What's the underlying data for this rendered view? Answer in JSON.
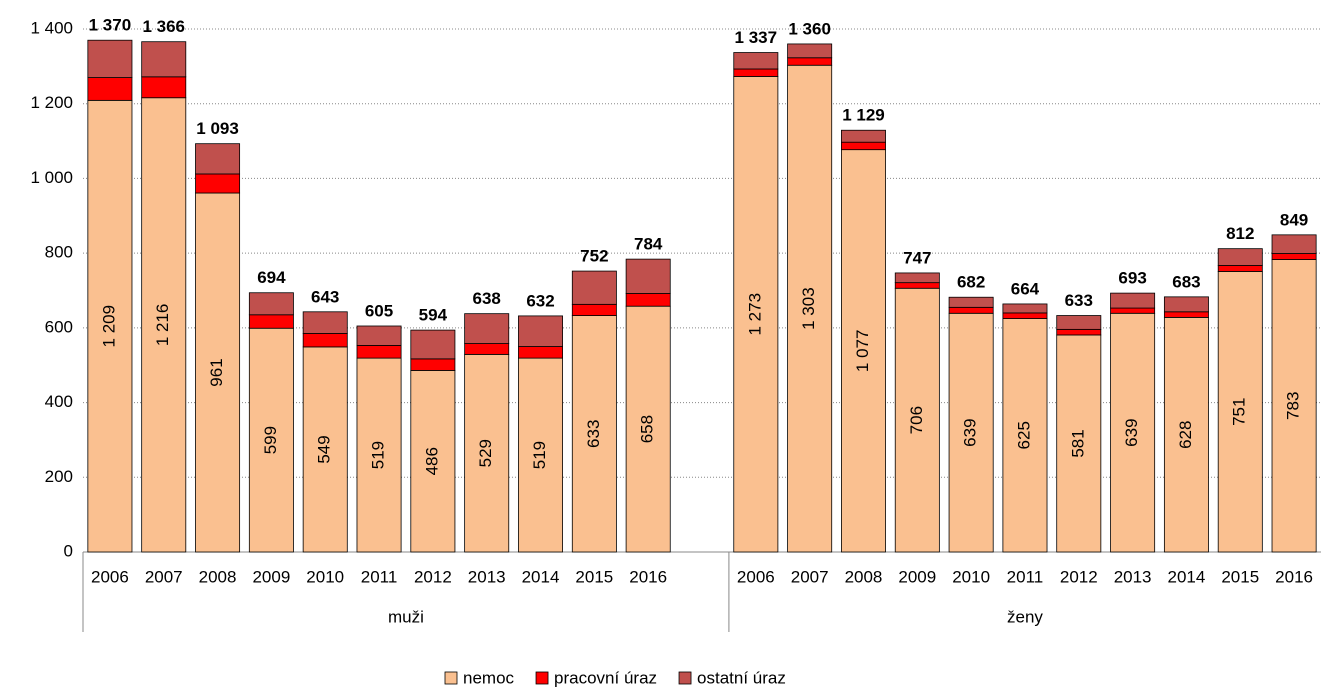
{
  "chart_data": {
    "type": "stacked_bar",
    "categories": [
      "2006",
      "2007",
      "2008",
      "2009",
      "2010",
      "2011",
      "2012",
      "2013",
      "2014",
      "2015",
      "2016",
      null,
      "2006",
      "2007",
      "2008",
      "2009",
      "2010",
      "2011",
      "2012",
      "2013",
      "2014",
      "2015",
      "2016"
    ],
    "groups": [
      "muži",
      "ženy"
    ],
    "series": [
      {
        "name": "nemoc",
        "color": "#fac090",
        "values": [
          1209,
          1216,
          961,
          599,
          549,
          519,
          486,
          529,
          519,
          633,
          658,
          null,
          1273,
          1303,
          1077,
          706,
          639,
          625,
          581,
          639,
          628,
          751,
          783
        ],
        "value_labels": [
          "1 209",
          "1 216",
          "961",
          "599",
          "549",
          "519",
          "486",
          "529",
          "519",
          "633",
          "658",
          null,
          "1 273",
          "1 303",
          "1 077",
          "706",
          "639",
          "625",
          "581",
          "639",
          "628",
          "751",
          "783"
        ]
      },
      {
        "name": "pracovní úraz",
        "color": "#ff0000",
        "values": [
          61,
          56,
          51,
          36,
          36,
          34,
          31,
          29,
          31,
          30,
          34,
          null,
          20,
          20,
          20,
          15,
          16,
          15,
          15,
          14,
          15,
          16,
          16
        ]
      },
      {
        "name": "ostatní úraz",
        "color": "#c0504d",
        "values": [
          100,
          94,
          81,
          59,
          58,
          52,
          77,
          80,
          82,
          89,
          92,
          null,
          44,
          37,
          32,
          26,
          27,
          24,
          37,
          40,
          40,
          45,
          50
        ]
      }
    ],
    "totals": [
      1370,
      1366,
      1093,
      694,
      643,
      605,
      594,
      638,
      632,
      752,
      784,
      null,
      1337,
      1360,
      1129,
      747,
      682,
      664,
      633,
      693,
      683,
      812,
      849
    ],
    "total_labels": [
      "1 370",
      "1 366",
      "1 093",
      "694",
      "643",
      "605",
      "594",
      "638",
      "632",
      "752",
      "784",
      null,
      "1 337",
      "1 360",
      "1 129",
      "747",
      "682",
      "664",
      "633",
      "693",
      "683",
      "812",
      "849"
    ],
    "ylim": [
      0,
      1400
    ],
    "yticks": [
      0,
      200,
      400,
      600,
      800,
      {
        "value": 1000,
        "label": "1 000"
      },
      {
        "value": 1200,
        "label": "1 200"
      },
      {
        "value": 1400,
        "label": "1 400"
      }
    ],
    "grid": true
  }
}
